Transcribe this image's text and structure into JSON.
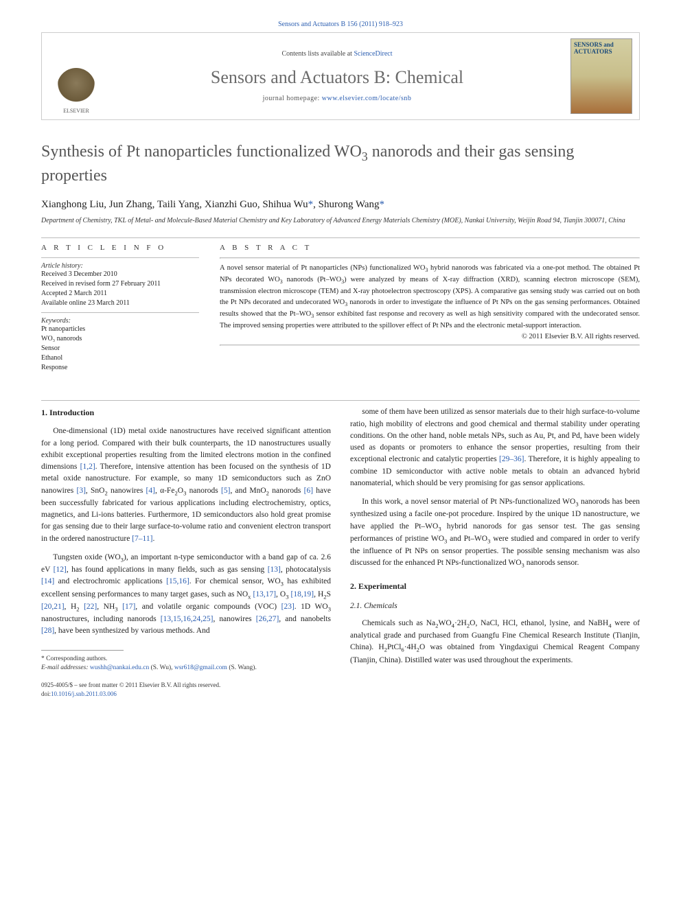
{
  "citation": "Sensors and Actuators B 156 (2011) 918–923",
  "header": {
    "contents_prefix": "Contents lists available at ",
    "contents_link": "ScienceDirect",
    "journal_title": "Sensors and Actuators B: Chemical",
    "homepage_prefix": "journal homepage: ",
    "homepage_url": "www.elsevier.com/locate/snb",
    "publisher": "ELSEVIER",
    "cover_title": "SENSORS and ACTUATORS"
  },
  "article": {
    "title_html": "Synthesis of Pt nanoparticles functionalized WO<sub>3</sub> nanorods and their gas sensing properties",
    "authors_html": "Xianghong Liu, Jun Zhang, Taili Yang, Xianzhi Guo, Shihua Wu<span class=\"corr\">*</span>, Shurong Wang<span class=\"corr\">*</span>",
    "affiliation": "Department of Chemistry, TKL of Metal- and Molecule-Based Material Chemistry and Key Laboratory of Advanced Energy Materials Chemistry (MOE), Nankai University, Weijin Road 94, Tianjin 300071, China"
  },
  "info": {
    "heading": "A R T I C L E   I N F O",
    "history_label": "Article history:",
    "history": [
      "Received 3 December 2010",
      "Received in revised form 27 February 2011",
      "Accepted 2 March 2011",
      "Available online 23 March 2011"
    ],
    "keywords_label": "Keywords:",
    "keywords": [
      "Pt nanoparticles",
      "WO₃ nanorods",
      "Sensor",
      "Ethanol",
      "Response"
    ]
  },
  "abstract": {
    "heading": "A B S T R A C T",
    "text_html": "A novel sensor material of Pt nanoparticles (NPs) functionalized WO<sub>3</sub> hybrid nanorods was fabricated via a one-pot method. The obtained Pt NPs decorated WO<sub>3</sub> nanorods (Pt–WO<sub>3</sub>) were analyzed by means of X-ray diffraction (XRD), scanning electron microscope (SEM), transmission electron microscope (TEM) and X-ray photoelectron spectroscopy (XPS). A comparative gas sensing study was carried out on both the Pt NPs decorated and undecorated WO<sub>3</sub> nanorods in order to investigate the influence of Pt NPs on the gas sensing performances. Obtained results showed that the Pt–WO<sub>3</sub> sensor exhibited fast response and recovery as well as high sensitivity compared with the undecorated sensor. The improved sensing properties were attributed to the spillover effect of Pt NPs and the electronic metal-support interaction.",
    "copyright": "© 2011 Elsevier B.V. All rights reserved."
  },
  "body": {
    "sec1_heading": "1. Introduction",
    "sec1_p1_html": "One-dimensional (1D) metal oxide nanostructures have received significant attention for a long period. Compared with their bulk counterparts, the 1D nanostructures usually exhibit exceptional properties resulting from the limited electrons motion in the confined dimensions <span class=\"ref\">[1,2]</span>. Therefore, intensive attention has been focused on the synthesis of 1D metal oxide nanostructure. For example, so many 1D semiconductors such as ZnO nanowires <span class=\"ref\">[3]</span>, SnO<sub>2</sub> nanowires <span class=\"ref\">[4]</span>, α-Fe<sub>2</sub>O<sub>3</sub> nanorods <span class=\"ref\">[5]</span>, and MnO<sub>2</sub> nanorods <span class=\"ref\">[6]</span> have been successfully fabricated for various applications including electrochemistry, optics, magnetics, and Li-ions batteries. Furthermore, 1D semiconductors also hold great promise for gas sensing due to their large surface-to-volume ratio and convenient electron transport in the ordered nanostructure <span class=\"ref\">[7–11]</span>.",
    "sec1_p2_html": "Tungsten oxide (WO<sub>3</sub>), an important n-type semiconductor with a band gap of ca. 2.6 eV <span class=\"ref\">[12]</span>, has found applications in many fields, such as gas sensing <span class=\"ref\">[13]</span>, photocatalysis <span class=\"ref\">[14]</span> and electrochromic applications <span class=\"ref\">[15,16]</span>. For chemical sensor, WO<sub>3</sub> has exhibited excellent sensing performances to many target gases, such as NO<sub>x</sub> <span class=\"ref\">[13,17]</span>, O<sub>3</sub> <span class=\"ref\">[18,19]</span>, H<sub>2</sub>S <span class=\"ref\">[20,21]</span>, H<sub>2</sub> <span class=\"ref\">[22]</span>, NH<sub>3</sub> <span class=\"ref\">[17]</span>, and volatile organic compounds (VOC) <span class=\"ref\">[23]</span>. 1D WO<sub>3</sub> nanostructures, including nanorods <span class=\"ref\">[13,15,16,24,25]</span>, nanowires <span class=\"ref\">[26,27]</span>, and nanobelts <span class=\"ref\">[28]</span>, have been synthesized by various methods. And",
    "sec1_p3_html": "some of them have been utilized as sensor materials due to their high surface-to-volume ratio, high mobility of electrons and good chemical and thermal stability under operating conditions. On the other hand, noble metals NPs, such as Au, Pt, and Pd, have been widely used as dopants or promoters to enhance the sensor properties, resulting from their exceptional electronic and catalytic properties <span class=\"ref\">[29–36]</span>. Therefore, it is highly appealing to combine 1D semiconductor with active noble metals to obtain an advanced hybrid nanomaterial, which should be very promising for gas sensor applications.",
    "sec1_p4_html": "In this work, a novel sensor material of Pt NPs-functionalized WO<sub>3</sub> nanorods has been synthesized using a facile one-pot procedure. Inspired by the unique 1D nanostructure, we have applied the Pt–WO<sub>3</sub> hybrid nanorods for gas sensor test. The gas sensing performances of pristine WO<sub>3</sub> and Pt–WO<sub>3</sub> were studied and compared in order to verify the influence of Pt NPs on sensor properties. The possible sensing mechanism was also discussed for the enhanced Pt NPs-functionalized WO<sub>3</sub> nanorods sensor.",
    "sec2_heading": "2. Experimental",
    "sec21_heading": "2.1. Chemicals",
    "sec21_p1_html": "Chemicals such as Na<sub>2</sub>WO<sub>4</sub>·2H<sub>2</sub>O, NaCl, HCl, ethanol, lysine, and NaBH<sub>4</sub> were of analytical grade and purchased from Guangfu Fine Chemical Research Institute (Tianjin, China). H<sub>2</sub>PtCl<sub>6</sub>·4H<sub>2</sub>O was obtained from Yingdaxigui Chemical Reagent Company (Tianjin, China). Distilled water was used throughout the experiments."
  },
  "footnotes": {
    "corr_label": "* Corresponding authors.",
    "email_label": "E-mail addresses: ",
    "email1": "wushh@nankai.edu.cn",
    "email1_who": " (S. Wu), ",
    "email2": "wsr618@gmail.com",
    "email2_who": " (S. Wang)."
  },
  "footer": {
    "issn_line": "0925-4005/$ – see front matter © 2011 Elsevier B.V. All rights reserved.",
    "doi_label": "doi:",
    "doi": "10.1016/j.snb.2011.03.006"
  },
  "colors": {
    "link": "#2a5db0",
    "title_gray": "#555555",
    "rule": "#bbbbbb"
  }
}
